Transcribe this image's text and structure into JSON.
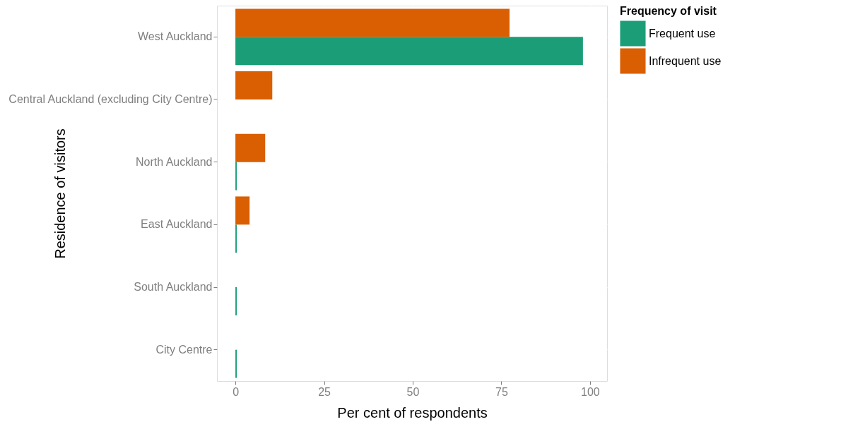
{
  "chart_data": {
    "type": "bar",
    "orientation": "horizontal",
    "categories": [
      "West Auckland",
      "Central Auckland (excluding City Centre)",
      "North Auckland",
      "East Auckland",
      "South Auckland",
      "City Centre"
    ],
    "series": [
      {
        "name": "Frequent use",
        "color": "#1b9e77",
        "values": [
          98.0,
          null,
          0.4,
          0.4,
          0.4,
          0.4
        ]
      },
      {
        "name": "Infrequent use",
        "color": "#d95f02",
        "values": [
          77.3,
          10.4,
          8.4,
          4.0,
          null,
          null
        ]
      }
    ],
    "xlabel": "Per cent of respondents",
    "ylabel": "Residence of visitors",
    "legend_title": "Frequency of visit",
    "xlim": [
      -5.2,
      104.8
    ],
    "xticks": [
      0,
      25,
      50,
      75,
      100
    ],
    "grid": true,
    "legend": "right"
  }
}
